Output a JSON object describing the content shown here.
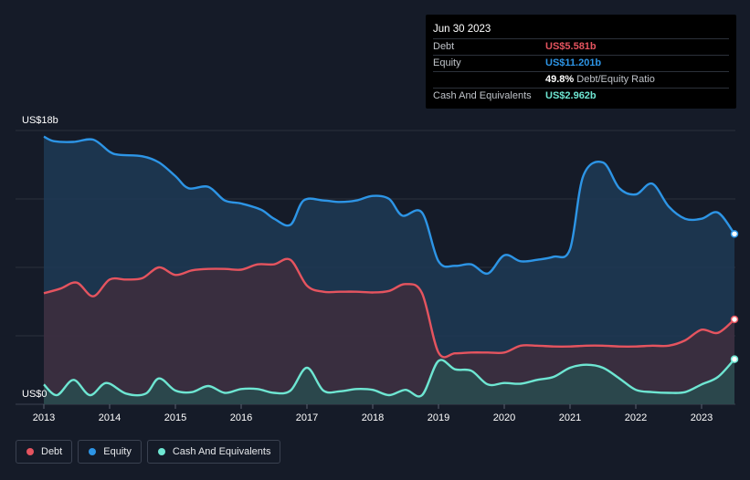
{
  "tooltip": {
    "date": "Jun 30 2023",
    "debt_label": "Debt",
    "debt_value": "US$5.581b",
    "equity_label": "Equity",
    "equity_value": "US$11.201b",
    "ratio_value": "49.8%",
    "ratio_label": "Debt/Equity Ratio",
    "cash_label": "Cash And Equivalents",
    "cash_value": "US$2.962b"
  },
  "legend": [
    {
      "label": "Debt",
      "color": "#e5545f"
    },
    {
      "label": "Equity",
      "color": "#2d95e6"
    },
    {
      "label": "Cash And Equivalents",
      "color": "#6ee6d2"
    }
  ],
  "colors": {
    "debt": "#e5545f",
    "equity": "#2d95e6",
    "cash": "#6ee6d2",
    "background": "#151b28",
    "gridline": "#2a303d"
  },
  "chart_data": {
    "type": "area",
    "title": "",
    "xlabel": "",
    "ylabel": "",
    "y_axis_top_label": "US$18b",
    "y_axis_bottom_label": "US$0",
    "ylim": [
      0,
      18
    ],
    "xlim": [
      2013.0,
      2023.5
    ],
    "x_tick_labels": [
      "2013",
      "2014",
      "2015",
      "2016",
      "2017",
      "2018",
      "2019",
      "2020",
      "2021",
      "2022",
      "2023"
    ],
    "grid": true,
    "legend_position": "bottom-left",
    "series": [
      {
        "name": "Equity",
        "points": [
          [
            2013.0,
            17.6
          ],
          [
            2013.15,
            17.3
          ],
          [
            2013.45,
            17.25
          ],
          [
            2013.75,
            17.4
          ],
          [
            2014.0,
            16.6
          ],
          [
            2014.15,
            16.4
          ],
          [
            2014.5,
            16.3
          ],
          [
            2014.75,
            15.9
          ],
          [
            2015.0,
            15.0
          ],
          [
            2015.2,
            14.2
          ],
          [
            2015.5,
            14.3
          ],
          [
            2015.75,
            13.4
          ],
          [
            2016.0,
            13.2
          ],
          [
            2016.3,
            12.8
          ],
          [
            2016.5,
            12.2
          ],
          [
            2016.75,
            11.8
          ],
          [
            2016.95,
            13.4
          ],
          [
            2017.25,
            13.4
          ],
          [
            2017.5,
            13.3
          ],
          [
            2017.75,
            13.4
          ],
          [
            2018.0,
            13.7
          ],
          [
            2018.25,
            13.5
          ],
          [
            2018.45,
            12.4
          ],
          [
            2018.75,
            12.6
          ],
          [
            2019.0,
            9.4
          ],
          [
            2019.25,
            9.1
          ],
          [
            2019.5,
            9.2
          ],
          [
            2019.75,
            8.6
          ],
          [
            2020.0,
            9.8
          ],
          [
            2020.25,
            9.4
          ],
          [
            2020.5,
            9.5
          ],
          [
            2020.75,
            9.7
          ],
          [
            2021.0,
            10.2
          ],
          [
            2021.2,
            15.0
          ],
          [
            2021.5,
            15.9
          ],
          [
            2021.75,
            14.2
          ],
          [
            2022.0,
            13.8
          ],
          [
            2022.25,
            14.5
          ],
          [
            2022.5,
            13.0
          ],
          [
            2022.75,
            12.2
          ],
          [
            2023.0,
            12.2
          ],
          [
            2023.25,
            12.6
          ],
          [
            2023.5,
            11.2
          ]
        ]
      },
      {
        "name": "Debt",
        "points": [
          [
            2013.0,
            7.3
          ],
          [
            2013.25,
            7.6
          ],
          [
            2013.5,
            8.0
          ],
          [
            2013.75,
            7.1
          ],
          [
            2014.0,
            8.2
          ],
          [
            2014.25,
            8.2
          ],
          [
            2014.5,
            8.3
          ],
          [
            2014.75,
            9.0
          ],
          [
            2015.0,
            8.5
          ],
          [
            2015.25,
            8.8
          ],
          [
            2015.5,
            8.9
          ],
          [
            2015.75,
            8.9
          ],
          [
            2016.0,
            8.85
          ],
          [
            2016.25,
            9.2
          ],
          [
            2016.5,
            9.2
          ],
          [
            2016.75,
            9.5
          ],
          [
            2017.0,
            7.8
          ],
          [
            2017.25,
            7.4
          ],
          [
            2017.5,
            7.4
          ],
          [
            2017.75,
            7.4
          ],
          [
            2018.0,
            7.35
          ],
          [
            2018.25,
            7.45
          ],
          [
            2018.5,
            7.9
          ],
          [
            2018.75,
            7.3
          ],
          [
            2019.0,
            3.4
          ],
          [
            2019.25,
            3.35
          ],
          [
            2019.5,
            3.4
          ],
          [
            2019.75,
            3.4
          ],
          [
            2020.0,
            3.4
          ],
          [
            2020.25,
            3.85
          ],
          [
            2020.5,
            3.85
          ],
          [
            2020.75,
            3.8
          ],
          [
            2021.0,
            3.8
          ],
          [
            2021.25,
            3.85
          ],
          [
            2021.5,
            3.85
          ],
          [
            2021.75,
            3.8
          ],
          [
            2022.0,
            3.8
          ],
          [
            2022.25,
            3.85
          ],
          [
            2022.5,
            3.85
          ],
          [
            2022.75,
            4.2
          ],
          [
            2023.0,
            4.9
          ],
          [
            2023.25,
            4.7
          ],
          [
            2023.5,
            5.581
          ]
        ]
      },
      {
        "name": "Cash And Equivalents",
        "points": [
          [
            2013.0,
            1.3
          ],
          [
            2013.2,
            0.6
          ],
          [
            2013.45,
            1.6
          ],
          [
            2013.7,
            0.6
          ],
          [
            2013.95,
            1.4
          ],
          [
            2014.25,
            0.7
          ],
          [
            2014.55,
            0.7
          ],
          [
            2014.75,
            1.7
          ],
          [
            2015.0,
            0.9
          ],
          [
            2015.25,
            0.8
          ],
          [
            2015.5,
            1.2
          ],
          [
            2015.75,
            0.75
          ],
          [
            2016.0,
            1.0
          ],
          [
            2016.25,
            1.0
          ],
          [
            2016.5,
            0.75
          ],
          [
            2016.75,
            0.9
          ],
          [
            2017.0,
            2.4
          ],
          [
            2017.25,
            0.9
          ],
          [
            2017.5,
            0.85
          ],
          [
            2017.75,
            1.0
          ],
          [
            2018.0,
            0.95
          ],
          [
            2018.25,
            0.6
          ],
          [
            2018.5,
            0.95
          ],
          [
            2018.75,
            0.6
          ],
          [
            2019.0,
            2.85
          ],
          [
            2019.25,
            2.3
          ],
          [
            2019.5,
            2.2
          ],
          [
            2019.75,
            1.3
          ],
          [
            2020.0,
            1.4
          ],
          [
            2020.25,
            1.35
          ],
          [
            2020.5,
            1.6
          ],
          [
            2020.75,
            1.8
          ],
          [
            2021.0,
            2.4
          ],
          [
            2021.25,
            2.6
          ],
          [
            2021.5,
            2.4
          ],
          [
            2021.75,
            1.7
          ],
          [
            2022.0,
            0.95
          ],
          [
            2022.25,
            0.8
          ],
          [
            2022.5,
            0.75
          ],
          [
            2022.75,
            0.8
          ],
          [
            2023.0,
            1.3
          ],
          [
            2023.25,
            1.8
          ],
          [
            2023.5,
            2.962
          ]
        ]
      }
    ]
  }
}
